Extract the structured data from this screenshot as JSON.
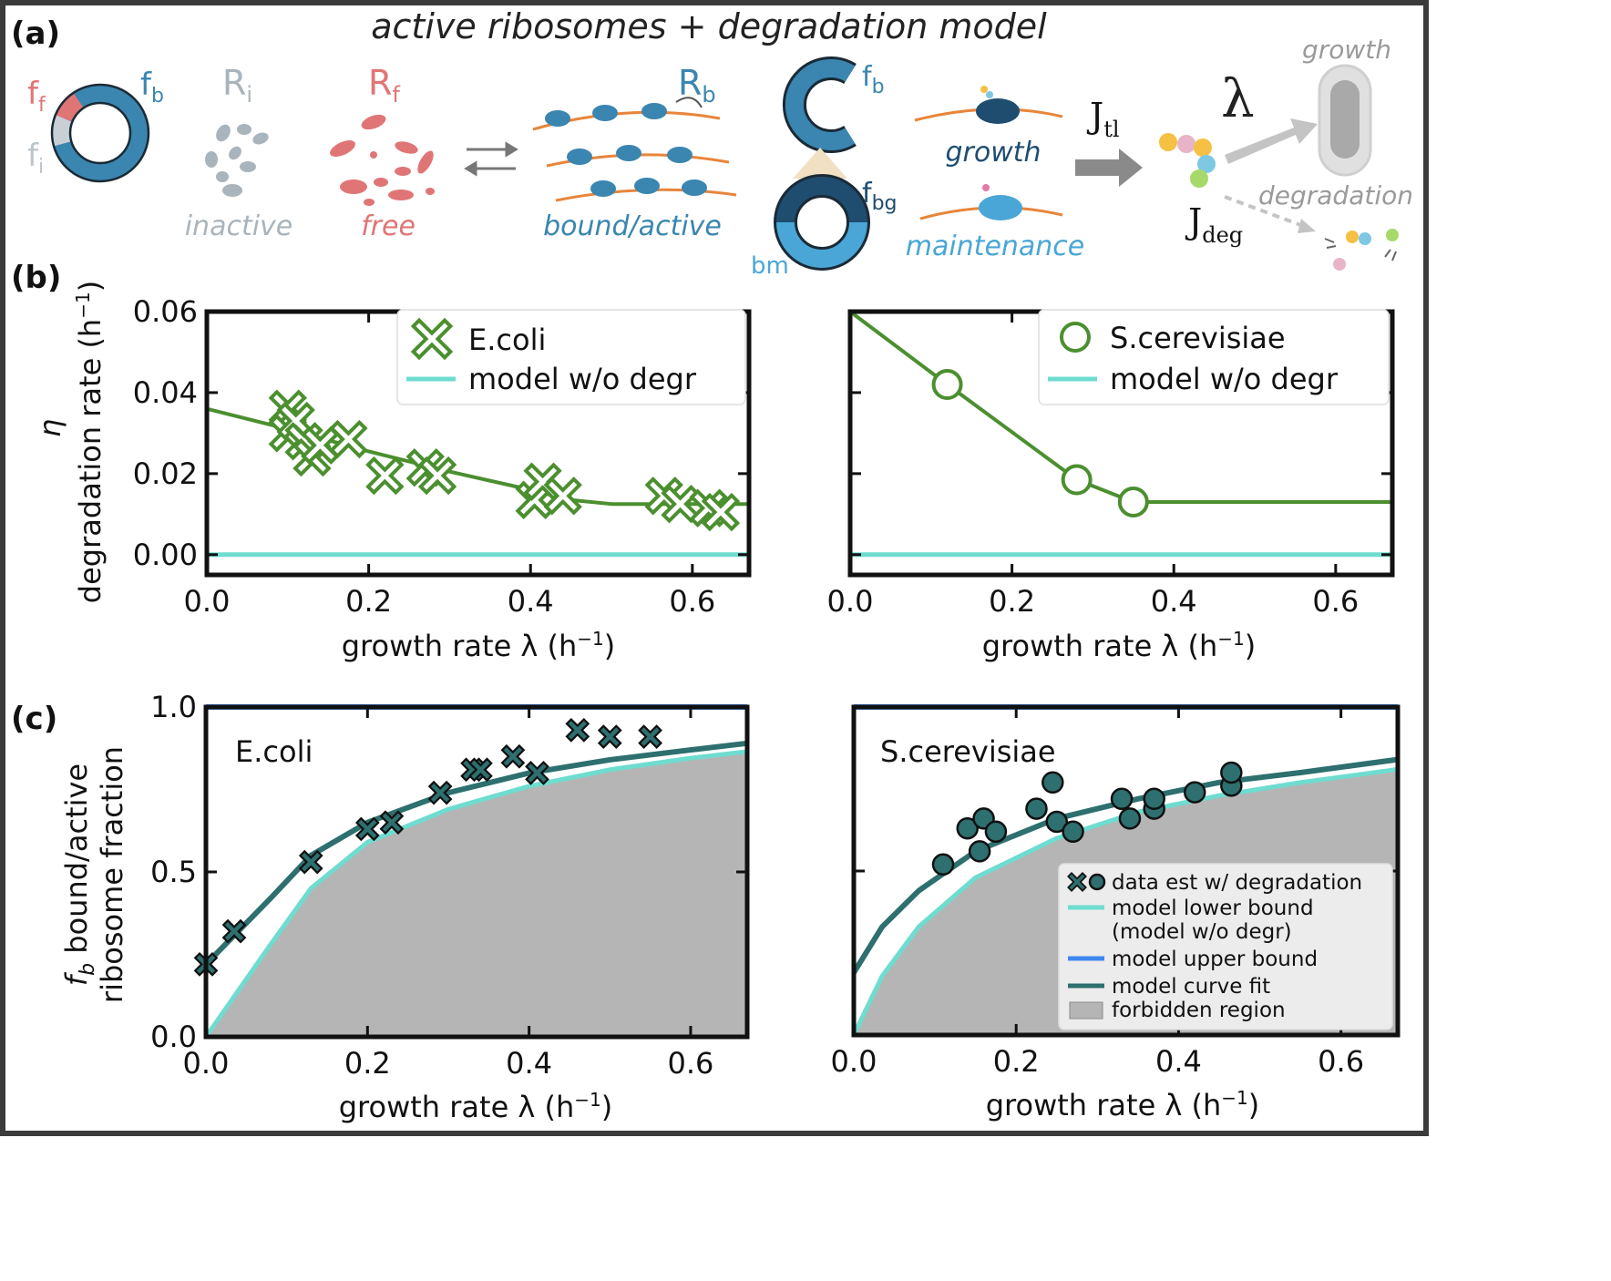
{
  "panel_a": {
    "panel_label": "(a)",
    "title": "active ribosomes + degradation model",
    "ring1": {
      "ff": "f",
      "ff_sub": "f",
      "fi": "f",
      "fi_sub": "i",
      "fb": "f",
      "fb_sub": "b"
    },
    "Ri": {
      "main": "R",
      "sub": "i",
      "caption": "inactive"
    },
    "Rf": {
      "main": "R",
      "sub": "f",
      "caption": "free"
    },
    "Rb": {
      "main": "R",
      "sub": "b",
      "caption": "bound/active"
    },
    "ring2": {
      "fb": "f",
      "fb_sub": "b",
      "fbg": "f",
      "fbg_sub": "bg",
      "bm": "bm"
    },
    "growth_label": "growth",
    "maintenance_label": "maintenance",
    "Jtl": {
      "main": "J",
      "sub": "tl"
    },
    "Jdeg": {
      "main": "J",
      "sub": "deg"
    },
    "lambda": "λ",
    "cell_growth_label": "growth",
    "degradation_label": "degradation",
    "colors": {
      "bound": "#3a86b0",
      "free": "#e07576",
      "inactive": "#a9b4bc",
      "maintenance": "#4aa6d6",
      "mrna": "#e8853a",
      "dark": "#1e4d70"
    }
  },
  "panel_b": {
    "panel_label": "(b)",
    "ylabel_symbol": "η",
    "ylabel": "degradation rate (h",
    "ylabel_unit_exp": "−1",
    "ylabel_close": ")",
    "xlabel": "growth rate λ (h",
    "xlabel_exp": "−1",
    "xlabel_close": ")",
    "left_legend": [
      "E.coli",
      "model w/o degr"
    ],
    "right_legend": [
      "S.cerevisiae",
      "model w/o degr"
    ]
  },
  "panel_c": {
    "panel_label": "(c)",
    "ylabel_line1": "f",
    "ylabel_line1_sub": "b",
    "ylabel_line1_rest": " bound/active",
    "ylabel_line2": "ribosome fraction",
    "xlabel": "growth rate λ (h",
    "xlabel_exp": "−1",
    "xlabel_close": ")",
    "left_title": "E.coli",
    "right_title": "S.cerevisiae",
    "legend": [
      "data est w/ degradation",
      "model lower bound",
      "(model w/o degr)",
      "model upper bound",
      "model curve fit",
      "forbidden region"
    ]
  },
  "chart_data": [
    {
      "type": "scatter",
      "name": "E.coli",
      "xlabel": "growth rate λ (h−1)",
      "ylabel": "η degradation rate (h−1)",
      "xlim": [
        0,
        0.67
      ],
      "ylim": [
        -0.005,
        0.06
      ],
      "xticks": [
        0.0,
        0.2,
        0.4,
        0.6
      ],
      "yticks": [
        0.0,
        0.02,
        0.04,
        0.06
      ],
      "ytick_labels": [
        "0.00",
        "0.02",
        "0.04",
        "0.06"
      ],
      "series": [
        {
          "name": "E.coli",
          "marker": "x",
          "color": "#4b8f2f",
          "x": [
            0.1,
            0.1,
            0.11,
            0.12,
            0.13,
            0.14,
            0.175,
            0.22,
            0.27,
            0.285,
            0.405,
            0.415,
            0.44,
            0.565,
            0.585,
            0.62,
            0.635
          ],
          "y": [
            0.036,
            0.03,
            0.033,
            0.028,
            0.024,
            0.027,
            0.0285,
            0.0195,
            0.0215,
            0.0195,
            0.0135,
            0.018,
            0.0145,
            0.0145,
            0.0125,
            0.0115,
            0.0105
          ]
        },
        {
          "name": "fit",
          "color": "#4b8f2f",
          "x": [
            0.0,
            0.1,
            0.2,
            0.3,
            0.4,
            0.45,
            0.5,
            0.55,
            0.6,
            0.67
          ],
          "y": [
            0.036,
            0.031,
            0.0255,
            0.0205,
            0.016,
            0.0135,
            0.0125,
            0.0125,
            0.0125,
            0.0125
          ]
        },
        {
          "name": "model w/o degr",
          "color": "#6fdcd0",
          "x": [
            0.0,
            0.67
          ],
          "y": [
            0.0,
            0.0
          ]
        }
      ]
    },
    {
      "type": "scatter",
      "name": "S.cerevisiae",
      "xlabel": "growth rate λ (h−1)",
      "xlim": [
        0,
        0.67
      ],
      "ylim": [
        -0.005,
        0.06
      ],
      "xticks": [
        0.0,
        0.2,
        0.4,
        0.6
      ],
      "series": [
        {
          "name": "S.cerevisiae",
          "marker": "o",
          "color": "#4b8f2f",
          "x": [
            0.12,
            0.28,
            0.35
          ],
          "y": [
            0.042,
            0.0185,
            0.013
          ]
        },
        {
          "name": "fit",
          "color": "#4b8f2f",
          "x": [
            0.0,
            0.12,
            0.28,
            0.35,
            0.67
          ],
          "y": [
            0.06,
            0.042,
            0.0185,
            0.013,
            0.013
          ]
        },
        {
          "name": "model w/o degr",
          "color": "#6fdcd0",
          "x": [
            0.0,
            0.67
          ],
          "y": [
            0.0,
            0.0
          ]
        }
      ]
    },
    {
      "type": "area",
      "name": "E.coli",
      "xlabel": "growth rate λ (h−1)",
      "ylabel": "fb bound/active ribosome fraction",
      "xlim": [
        0,
        0.67
      ],
      "ylim": [
        0,
        1.0
      ],
      "xticks": [
        0.0,
        0.2,
        0.4,
        0.6
      ],
      "yticks": [
        0.0,
        0.5,
        1.0
      ],
      "ytick_labels": [
        "0.0",
        "0.5",
        "1.0"
      ],
      "series": [
        {
          "name": "data est w/ degradation",
          "marker": "x",
          "color": "#2e6f6f",
          "x": [
            0.0,
            0.035,
            0.13,
            0.2,
            0.23,
            0.29,
            0.33,
            0.34,
            0.38,
            0.41,
            0.46,
            0.5,
            0.55
          ],
          "y": [
            0.22,
            0.32,
            0.53,
            0.63,
            0.65,
            0.74,
            0.81,
            0.81,
            0.85,
            0.8,
            0.93,
            0.91,
            0.91
          ]
        },
        {
          "name": "model lower bound",
          "color": "#6fdcd0",
          "x": [
            0.0,
            0.04,
            0.08,
            0.13,
            0.2,
            0.3,
            0.4,
            0.5,
            0.6,
            0.67
          ],
          "y": [
            0.0,
            0.14,
            0.28,
            0.45,
            0.59,
            0.69,
            0.76,
            0.81,
            0.845,
            0.865
          ]
        },
        {
          "name": "model upper bound",
          "color": "#3f87f0",
          "x": [
            0.0,
            0.67
          ],
          "y": [
            1.0,
            1.0
          ]
        },
        {
          "name": "model curve fit",
          "color": "#2e6f6f",
          "x": [
            0.0,
            0.04,
            0.08,
            0.13,
            0.2,
            0.3,
            0.4,
            0.5,
            0.6,
            0.67
          ],
          "y": [
            0.22,
            0.32,
            0.42,
            0.55,
            0.65,
            0.74,
            0.8,
            0.84,
            0.87,
            0.89
          ]
        }
      ]
    },
    {
      "type": "area",
      "name": "S.cerevisiae",
      "xlabel": "growth rate λ (h−1)",
      "xlim": [
        0,
        0.67
      ],
      "ylim": [
        0,
        1.0
      ],
      "xticks": [
        0.0,
        0.2,
        0.4,
        0.6
      ],
      "series": [
        {
          "name": "data est w/ degradation",
          "marker": "o",
          "color": "#2e6f6f",
          "x": [
            0.11,
            0.14,
            0.155,
            0.16,
            0.175,
            0.225,
            0.245,
            0.25,
            0.27,
            0.33,
            0.34,
            0.37,
            0.37,
            0.42,
            0.465,
            0.465
          ],
          "y": [
            0.52,
            0.63,
            0.56,
            0.66,
            0.62,
            0.69,
            0.77,
            0.65,
            0.62,
            0.72,
            0.66,
            0.69,
            0.72,
            0.74,
            0.76,
            0.8
          ]
        },
        {
          "name": "model lower bound",
          "color": "#6fdcd0",
          "x": [
            0.0,
            0.035,
            0.08,
            0.15,
            0.25,
            0.35,
            0.45,
            0.55,
            0.67
          ],
          "y": [
            0.0,
            0.18,
            0.33,
            0.48,
            0.6,
            0.68,
            0.73,
            0.77,
            0.81
          ]
        },
        {
          "name": "model upper bound",
          "color": "#3f87f0",
          "x": [
            0.0,
            0.67
          ],
          "y": [
            1.0,
            1.0
          ]
        },
        {
          "name": "model curve fit",
          "color": "#2e6f6f",
          "x": [
            0.0,
            0.035,
            0.08,
            0.15,
            0.25,
            0.35,
            0.45,
            0.55,
            0.67
          ],
          "y": [
            0.19,
            0.33,
            0.44,
            0.56,
            0.66,
            0.72,
            0.77,
            0.8,
            0.84
          ]
        }
      ]
    }
  ]
}
